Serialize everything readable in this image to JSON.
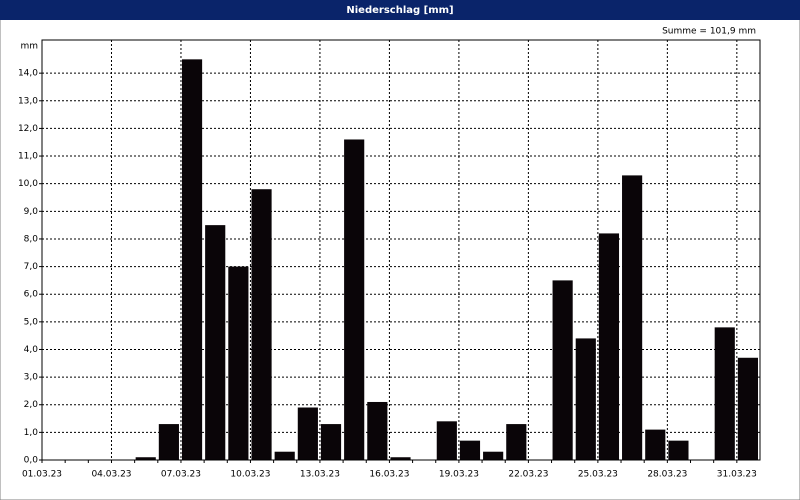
{
  "chart_data": {
    "type": "bar",
    "title": "Niederschlag [mm]",
    "y_label": "mm",
    "annotation": "Summe = 101,9 mm",
    "categories": [
      "01.03.23",
      null,
      null,
      "04.03.23",
      null,
      null,
      "07.03.23",
      null,
      null,
      "10.03.23",
      null,
      null,
      "13.03.23",
      null,
      null,
      "16.03.23",
      null,
      null,
      "19.03.23",
      null,
      null,
      "22.03.23",
      null,
      null,
      "25.03.23",
      null,
      null,
      "28.03.23",
      null,
      null,
      "31.03.23"
    ],
    "values": [
      0,
      0,
      0,
      0,
      0.1,
      1.3,
      14.5,
      8.5,
      7.0,
      9.8,
      0.3,
      1.9,
      1.3,
      11.6,
      2.1,
      0.1,
      0,
      1.4,
      0.7,
      0.3,
      1.3,
      0,
      6.5,
      4.4,
      8.2,
      10.3,
      1.1,
      0.7,
      0,
      4.8,
      3.7
    ],
    "color": "#0a0508",
    "ylim": [
      0,
      15.2
    ],
    "yticks": [
      {
        "value": 0,
        "label": "0,0"
      },
      {
        "value": 1,
        "label": "1,0"
      },
      {
        "value": 2,
        "label": "2,0"
      },
      {
        "value": 3,
        "label": "3,0"
      },
      {
        "value": 4,
        "label": "4,0"
      },
      {
        "value": 5,
        "label": "5,0"
      },
      {
        "value": 6,
        "label": "6,0"
      },
      {
        "value": 7,
        "label": "7,0"
      },
      {
        "value": 8,
        "label": "8,0"
      },
      {
        "value": 9,
        "label": "9,0"
      },
      {
        "value": 10,
        "label": "10,0"
      },
      {
        "value": 11,
        "label": "11,0"
      },
      {
        "value": 12,
        "label": "12,0"
      },
      {
        "value": 13,
        "label": "13,0"
      },
      {
        "value": 14,
        "label": "14,0"
      }
    ],
    "grid": true
  }
}
